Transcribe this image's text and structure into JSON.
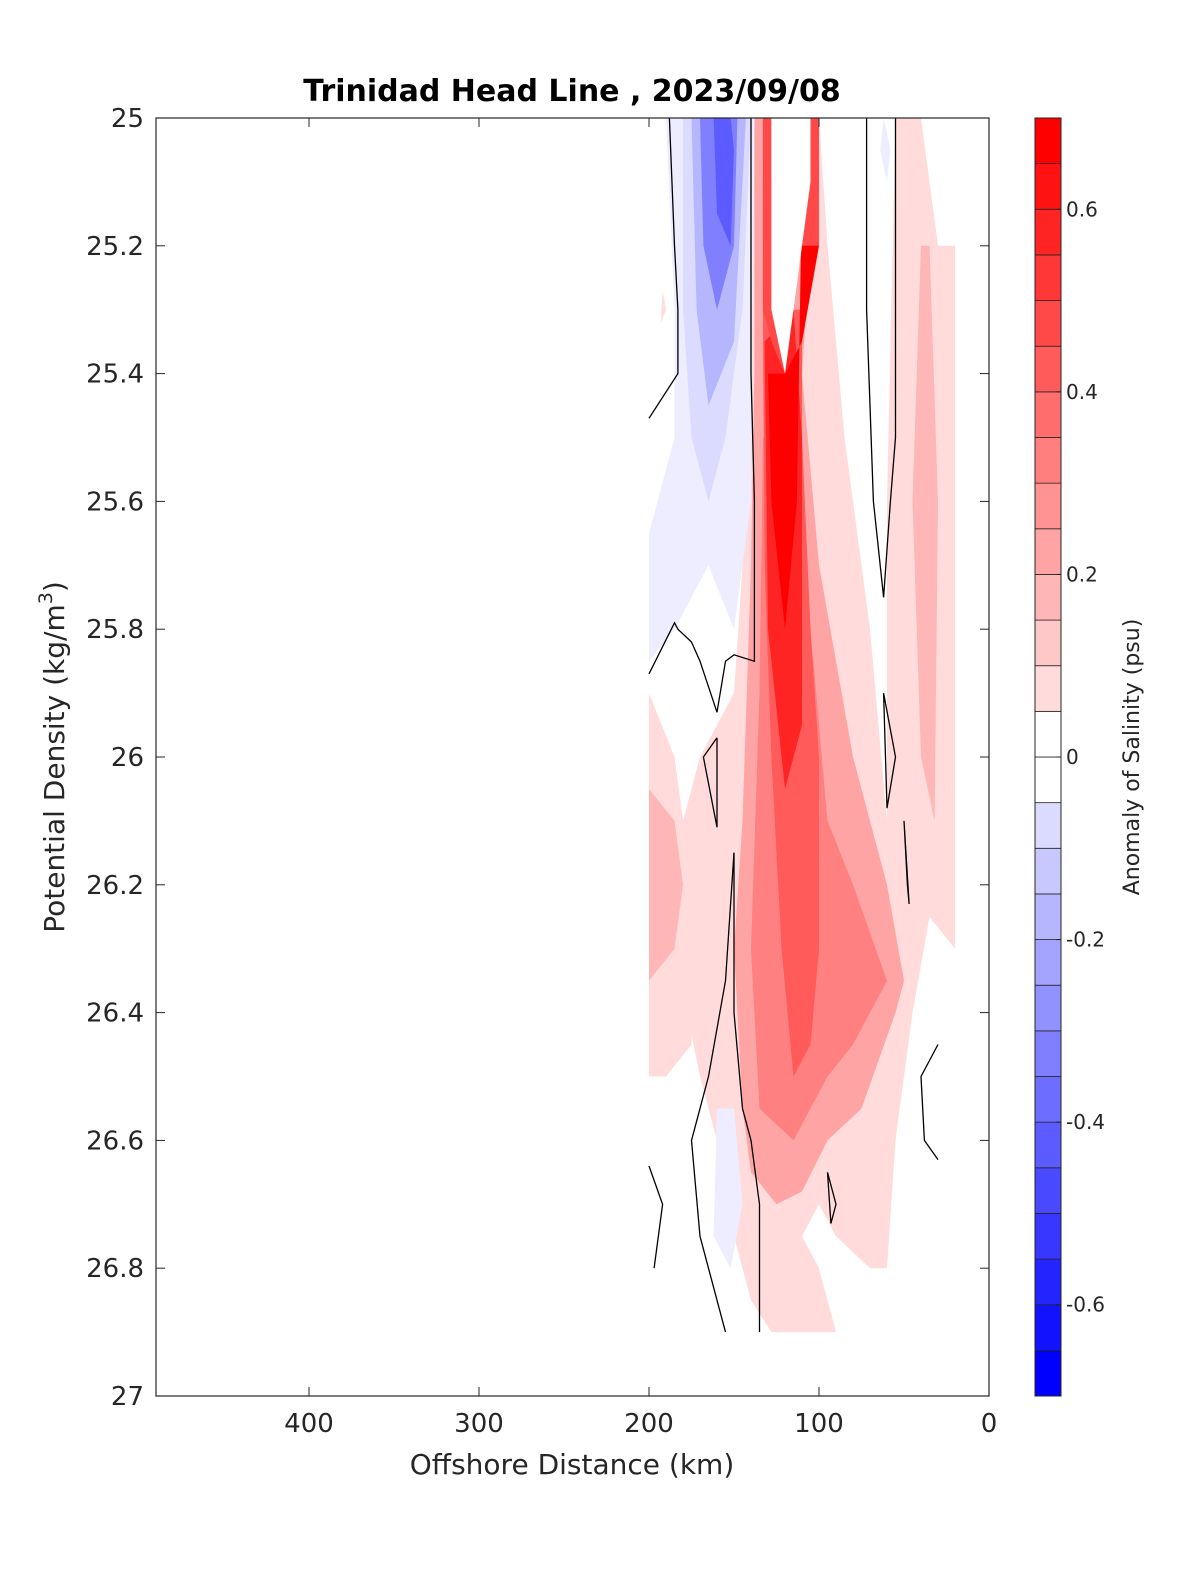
{
  "chart_data": {
    "type": "contour",
    "title": "Trinidad Head Line , 2023/09/08",
    "xlabel": "Offshore Distance (km)",
    "ylabel_main": "Potential Density (kg/m",
    "ylabel_sup": "3",
    "ylabel_close": ")",
    "xlim": [
      490,
      0
    ],
    "ylim": [
      27,
      25
    ],
    "x_reversed": true,
    "y_reversed": true,
    "xticks": [
      400,
      300,
      200,
      100,
      0
    ],
    "xtick_labels": [
      "400",
      "300",
      "200",
      "100",
      "0"
    ],
    "yticks": [
      25,
      25.2,
      25.4,
      25.6,
      25.8,
      26,
      26.2,
      26.4,
      26.6,
      26.8,
      27
    ],
    "ytick_labels": [
      "25",
      "25.2",
      "25.4",
      "25.6",
      "25.8",
      "26",
      "26.2",
      "26.4",
      "26.6",
      "26.8",
      "27"
    ],
    "colorbar": {
      "label": "Anomaly of Salinity (psu)",
      "min": -0.7,
      "max": 0.7,
      "step": 0.05,
      "ticks": [
        0.6,
        0.4,
        0.2,
        0,
        -0.2,
        -0.4,
        -0.6
      ],
      "tick_labels": [
        "0.6",
        "0.4",
        "0.2",
        "0",
        "-0.2",
        "-0.4",
        "-0.6"
      ],
      "positive_color": "#ff0000",
      "negative_color": "#0000ff",
      "zero_color": "#ffffff"
    },
    "contour_line_color": "#000000",
    "regions": [
      {
        "name": "nearshore-band-upper",
        "anomaly": 0.1,
        "points": [
          [
            40,
            25
          ],
          [
            30,
            25.2
          ],
          [
            20,
            25.2
          ],
          [
            20,
            26.3
          ],
          [
            35,
            26.25
          ],
          [
            45,
            26.4
          ],
          [
            60,
            26.1
          ],
          [
            60,
            25.6
          ],
          [
            55,
            25.0
          ]
        ]
      },
      {
        "name": "nearshore-band-inner",
        "anomaly": 0.2,
        "points": [
          [
            40,
            25.2
          ],
          [
            35,
            25.2
          ],
          [
            30,
            25.6
          ],
          [
            32,
            26.1
          ],
          [
            40,
            26.0
          ],
          [
            45,
            25.6
          ]
        ]
      },
      {
        "name": "main-core-halo",
        "anomaly": 0.1,
        "points": [
          [
            140,
            25
          ],
          [
            140,
            25.5
          ],
          [
            150,
            25.9
          ],
          [
            170,
            26.0
          ],
          [
            180,
            26.1
          ],
          [
            185,
            26.3
          ],
          [
            170,
            26.5
          ],
          [
            160,
            26.6
          ],
          [
            150,
            26.75
          ],
          [
            140,
            26.85
          ],
          [
            128,
            26.9
          ],
          [
            90,
            26.9
          ],
          [
            100,
            26.8
          ],
          [
            110,
            26.75
          ],
          [
            100,
            26.7
          ],
          [
            90,
            26.75
          ],
          [
            70,
            26.8
          ],
          [
            60,
            26.8
          ],
          [
            55,
            26.6
          ],
          [
            45,
            26.4
          ],
          [
            60,
            26.1
          ],
          [
            70,
            25.8
          ],
          [
            85,
            25.5
          ],
          [
            95,
            25.2
          ],
          [
            100,
            25.0
          ]
        ]
      },
      {
        "name": "west-lower-halo",
        "anomaly": 0.1,
        "points": [
          [
            200,
            25.9
          ],
          [
            185,
            26.0
          ],
          [
            175,
            26.2
          ],
          [
            175,
            26.45
          ],
          [
            190,
            26.5
          ],
          [
            200,
            26.5
          ]
        ]
      },
      {
        "name": "west-lower-core",
        "anomaly": 0.2,
        "points": [
          [
            200,
            26.05
          ],
          [
            185,
            26.1
          ],
          [
            180,
            26.2
          ],
          [
            185,
            26.3
          ],
          [
            200,
            26.35
          ]
        ]
      },
      {
        "name": "main-core-mid",
        "anomaly": 0.25,
        "points": [
          [
            138,
            25.0
          ],
          [
            138,
            25.4
          ],
          [
            140,
            25.7
          ],
          [
            145,
            26.1
          ],
          [
            150,
            26.3
          ],
          [
            145,
            26.55
          ],
          [
            140,
            26.65
          ],
          [
            125,
            26.7
          ],
          [
            110,
            26.68
          ],
          [
            95,
            26.6
          ],
          [
            75,
            26.55
          ],
          [
            55,
            26.4
          ],
          [
            50,
            26.35
          ],
          [
            60,
            26.2
          ],
          [
            80,
            26.0
          ],
          [
            100,
            25.7
          ],
          [
            110,
            25.4
          ],
          [
            100,
            25.0
          ]
        ]
      },
      {
        "name": "main-core-deep",
        "anomaly": 0.35,
        "points": [
          [
            133,
            25.5
          ],
          [
            135,
            25.9
          ],
          [
            140,
            26.3
          ],
          [
            135,
            26.55
          ],
          [
            115,
            26.6
          ],
          [
            95,
            26.5
          ],
          [
            80,
            26.45
          ],
          [
            60,
            26.35
          ],
          [
            80,
            26.2
          ],
          [
            95,
            26.1
          ],
          [
            105,
            25.8
          ],
          [
            115,
            25.5
          ]
        ]
      },
      {
        "name": "main-core-strong",
        "anomaly": 0.45,
        "points": [
          [
            133,
            25.3
          ],
          [
            132,
            25.7
          ],
          [
            128,
            26.0
          ],
          [
            122,
            26.3
          ],
          [
            115,
            26.5
          ],
          [
            105,
            26.45
          ],
          [
            100,
            26.3
          ],
          [
            100,
            26.0
          ],
          [
            105,
            25.8
          ],
          [
            110,
            25.5
          ],
          [
            110,
            25.3
          ]
        ]
      },
      {
        "name": "main-core-peak",
        "anomaly": 0.6,
        "points": [
          [
            132,
            25.35
          ],
          [
            130,
            25.8
          ],
          [
            120,
            26.05
          ],
          [
            110,
            25.95
          ],
          [
            110,
            25.5
          ],
          [
            115,
            25.3
          ]
        ]
      },
      {
        "name": "main-core-max",
        "anomaly": 0.7,
        "points": [
          [
            130,
            25.4
          ],
          [
            128,
            25.6
          ],
          [
            120,
            25.8
          ],
          [
            113,
            25.6
          ],
          [
            110,
            25.1
          ],
          [
            104,
            25.0
          ],
          [
            100,
            25.0
          ],
          [
            100,
            25.2
          ],
          [
            110,
            25.35
          ],
          [
            120,
            25.4
          ]
        ]
      },
      {
        "name": "upper-red-strip",
        "anomaly": 0.5,
        "points": [
          [
            133,
            25
          ],
          [
            133,
            25.3
          ],
          [
            128,
            25.35
          ],
          [
            120,
            25.4
          ],
          [
            112,
            25.2
          ],
          [
            100,
            25.2
          ],
          [
            100,
            25.0
          ],
          [
            120,
            25.0
          ],
          [
            128,
            25.1
          ],
          [
            128,
            25.0
          ]
        ]
      },
      {
        "name": "upper-gap",
        "anomaly": 0.0,
        "points": [
          [
            128,
            25.0
          ],
          [
            128,
            25.3
          ],
          [
            120,
            25.4
          ],
          [
            110,
            25.2
          ],
          [
            105,
            25.1
          ],
          [
            105,
            25.0
          ]
        ]
      },
      {
        "name": "blue-halo",
        "anomaly": -0.05,
        "points": [
          [
            190,
            25.0
          ],
          [
            185,
            25.3
          ],
          [
            185,
            25.5
          ],
          [
            200,
            25.65
          ],
          [
            200,
            25.85
          ],
          [
            185,
            25.8
          ],
          [
            175,
            25.75
          ],
          [
            165,
            25.7
          ],
          [
            150,
            25.8
          ],
          [
            140,
            25.6
          ],
          [
            138,
            25.0
          ]
        ]
      },
      {
        "name": "blue-inner",
        "anomaly": -0.1,
        "points": [
          [
            180,
            25.0
          ],
          [
            180,
            25.3
          ],
          [
            175,
            25.5
          ],
          [
            165,
            25.6
          ],
          [
            155,
            25.5
          ],
          [
            145,
            25.3
          ],
          [
            140,
            25.0
          ]
        ]
      },
      {
        "name": "blue-mid",
        "anomaly": -0.2,
        "points": [
          [
            175,
            25.0
          ],
          [
            172,
            25.3
          ],
          [
            165,
            25.45
          ],
          [
            150,
            25.35
          ],
          [
            145,
            25.1
          ],
          [
            143,
            25.0
          ]
        ]
      },
      {
        "name": "blue-core",
        "anomaly": -0.35,
        "points": [
          [
            170,
            25.0
          ],
          [
            168,
            25.2
          ],
          [
            160,
            25.3
          ],
          [
            150,
            25.2
          ],
          [
            148,
            25.0
          ]
        ]
      },
      {
        "name": "blue-deep-core",
        "anomaly": -0.45,
        "points": [
          [
            162,
            25.0
          ],
          [
            160,
            25.15
          ],
          [
            152,
            25.2
          ],
          [
            150,
            25.05
          ],
          [
            152,
            25.0
          ]
        ]
      },
      {
        "name": "blue-lower-blob",
        "anomaly": -0.05,
        "points": [
          [
            160,
            26.55
          ],
          [
            162,
            26.75
          ],
          [
            152,
            26.8
          ],
          [
            145,
            26.7
          ],
          [
            150,
            26.55
          ]
        ]
      },
      {
        "name": "tiny-blue-east",
        "anomaly": -0.05,
        "points": [
          [
            62,
            25.0
          ],
          [
            58,
            25.05
          ],
          [
            60,
            25.1
          ],
          [
            64,
            25.05
          ]
        ]
      },
      {
        "name": "tiny-red-west",
        "anomaly": 0.1,
        "points": [
          [
            192,
            25.27
          ],
          [
            190,
            25.3
          ],
          [
            193,
            25.32
          ]
        ]
      }
    ],
    "contour_lines": [
      {
        "name": "zero-contour-1",
        "points": [
          [
            188,
            25.0
          ],
          [
            185,
            25.2
          ],
          [
            183,
            25.3
          ],
          [
            183,
            25.4
          ],
          [
            200,
            25.47
          ]
        ]
      },
      {
        "name": "zero-contour-2",
        "points": [
          [
            140,
            25.0
          ],
          [
            140,
            25.4
          ],
          [
            138,
            25.6
          ],
          [
            138,
            25.85
          ],
          [
            150,
            25.84
          ],
          [
            155,
            25.85
          ],
          [
            160,
            25.93
          ],
          [
            170,
            25.85
          ],
          [
            175,
            25.82
          ],
          [
            183,
            25.8
          ],
          [
            185,
            25.79
          ],
          [
            200,
            25.87
          ]
        ]
      },
      {
        "name": "zero-contour-3",
        "points": [
          [
            72,
            25.0
          ],
          [
            72,
            25.3
          ],
          [
            68,
            25.6
          ],
          [
            62,
            25.75
          ],
          [
            58,
            25.6
          ],
          [
            55,
            25.5
          ],
          [
            55,
            25.0
          ]
        ]
      },
      {
        "name": "zero-contour-4",
        "points": [
          [
            62,
            25.9
          ],
          [
            55,
            26.0
          ],
          [
            60,
            26.08
          ],
          [
            62,
            25.9
          ]
        ]
      },
      {
        "name": "zero-contour-5",
        "points": [
          [
            160,
            25.97
          ],
          [
            168,
            26.0
          ],
          [
            160,
            26.11
          ],
          [
            160,
            25.97
          ]
        ]
      },
      {
        "name": "zero-contour-6",
        "points": [
          [
            50,
            26.1
          ],
          [
            48,
            26.2
          ],
          [
            47,
            26.23
          ],
          [
            50,
            26.1
          ]
        ]
      },
      {
        "name": "zero-contour-7",
        "points": [
          [
            150,
            26.15
          ],
          [
            150,
            26.4
          ],
          [
            145,
            26.55
          ],
          [
            140,
            26.6
          ],
          [
            135,
            26.7
          ],
          [
            135,
            26.9
          ]
        ]
      },
      {
        "name": "zero-contour-8",
        "points": [
          [
            150,
            26.15
          ],
          [
            155,
            26.35
          ],
          [
            165,
            26.5
          ],
          [
            175,
            26.6
          ],
          [
            170,
            26.75
          ],
          [
            160,
            26.85
          ],
          [
            155,
            26.9
          ]
        ]
      },
      {
        "name": "zero-contour-9",
        "points": [
          [
            200,
            26.64
          ],
          [
            192,
            26.7
          ],
          [
            197,
            26.8
          ]
        ]
      },
      {
        "name": "zero-contour-10",
        "points": [
          [
            95,
            26.65
          ],
          [
            90,
            26.7
          ],
          [
            93,
            26.73
          ],
          [
            95,
            26.65
          ]
        ]
      },
      {
        "name": "zero-contour-11",
        "points": [
          [
            30,
            26.45
          ],
          [
            40,
            26.5
          ],
          [
            38,
            26.6
          ],
          [
            30,
            26.63
          ]
        ]
      }
    ]
  }
}
